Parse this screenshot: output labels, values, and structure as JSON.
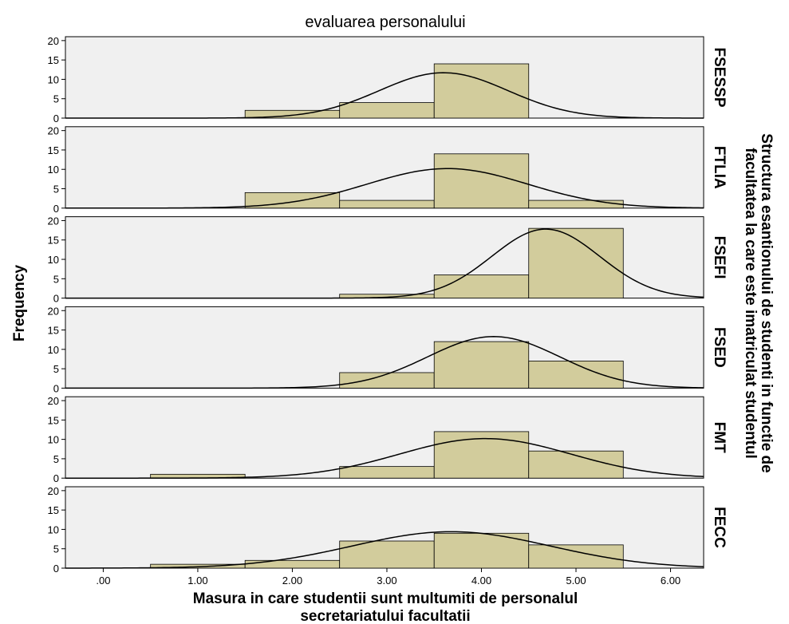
{
  "chart_data": {
    "type": "bar",
    "subtype": "histogram-panel",
    "title": "evaluarea personalului",
    "xlabel_lines": [
      "Masura in care studentii sunt multumiti de personalul",
      "secretariatului facultatii"
    ],
    "ylabel": "Frequency",
    "right_label_lines": [
      "Structura esantionului de studenti in functie de",
      "facultatea la care este imatriculat studentul"
    ],
    "xlim": [
      -0.4,
      6.35
    ],
    "ylim": [
      0,
      21
    ],
    "x_ticks": [
      {
        "value": 0,
        "label": ".00"
      },
      {
        "value": 1,
        "label": "1.00"
      },
      {
        "value": 2,
        "label": "2.00"
      },
      {
        "value": 3,
        "label": "3.00"
      },
      {
        "value": 4,
        "label": "4.00"
      },
      {
        "value": 5,
        "label": "5.00"
      },
      {
        "value": 6,
        "label": "6.00"
      }
    ],
    "y_ticks": [
      0,
      5,
      10,
      15,
      20
    ],
    "bin_width": 1,
    "curve": "normal",
    "colors": {
      "bar": "#d2cc9c",
      "panel": "#f0f0f0"
    },
    "panels": [
      {
        "name": "FSESSP",
        "bins": [
          {
            "x": 2,
            "count": 2
          },
          {
            "x": 3,
            "count": 4
          },
          {
            "x": 4,
            "count": 14
          }
        ],
        "normal": {
          "mean": 3.6,
          "sd": 0.68,
          "peak": 11.7
        }
      },
      {
        "name": "FTLIA",
        "bins": [
          {
            "x": 2,
            "count": 4
          },
          {
            "x": 3,
            "count": 2
          },
          {
            "x": 4,
            "count": 14
          },
          {
            "x": 5,
            "count": 2
          }
        ],
        "normal": {
          "mean": 3.64,
          "sd": 0.85,
          "peak": 10.2
        }
      },
      {
        "name": "FSEFI",
        "bins": [
          {
            "x": 3,
            "count": 1
          },
          {
            "x": 4,
            "count": 6
          },
          {
            "x": 5,
            "count": 18
          }
        ],
        "normal": {
          "mean": 4.68,
          "sd": 0.57,
          "peak": 17.8
        }
      },
      {
        "name": "FSED",
        "bins": [
          {
            "x": 3,
            "count": 4
          },
          {
            "x": 4,
            "count": 12
          },
          {
            "x": 5,
            "count": 7
          }
        ],
        "normal": {
          "mean": 4.13,
          "sd": 0.7,
          "peak": 13.3
        }
      },
      {
        "name": "FMT",
        "bins": [
          {
            "x": 1,
            "count": 1
          },
          {
            "x": 3,
            "count": 3
          },
          {
            "x": 4,
            "count": 12
          },
          {
            "x": 5,
            "count": 7
          }
        ],
        "normal": {
          "mean": 4.04,
          "sd": 0.91,
          "peak": 10.2
        }
      },
      {
        "name": "FECC",
        "bins": [
          {
            "x": 1,
            "count": 1
          },
          {
            "x": 2,
            "count": 2
          },
          {
            "x": 3,
            "count": 7
          },
          {
            "x": 4,
            "count": 9
          },
          {
            "x": 5,
            "count": 6
          }
        ],
        "normal": {
          "mean": 3.68,
          "sd": 1.05,
          "peak": 9.4
        }
      }
    ]
  }
}
